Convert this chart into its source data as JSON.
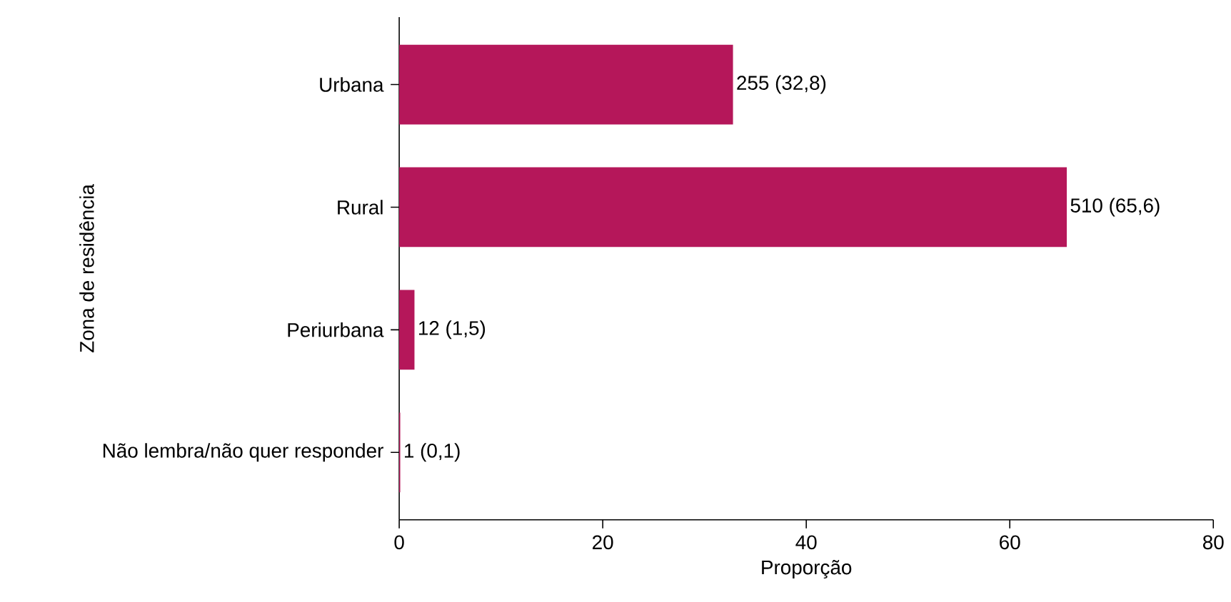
{
  "chart_data": {
    "type": "bar",
    "orientation": "horizontal",
    "xlabel": "Proporção",
    "ylabel": "Zona de residência",
    "categories": [
      "Urbana",
      "Rural",
      "Periurbana",
      "Não lembra/não quer responder"
    ],
    "values": [
      32.8,
      65.6,
      1.5,
      0.1
    ],
    "value_labels": [
      "255 (32,8)",
      "510 (65,6)",
      "12 (1,5)",
      "1 (0,1)"
    ],
    "color": "#b5175a",
    "xlim": [
      0,
      80
    ],
    "xticks": [
      0,
      20,
      40,
      60,
      80
    ]
  }
}
